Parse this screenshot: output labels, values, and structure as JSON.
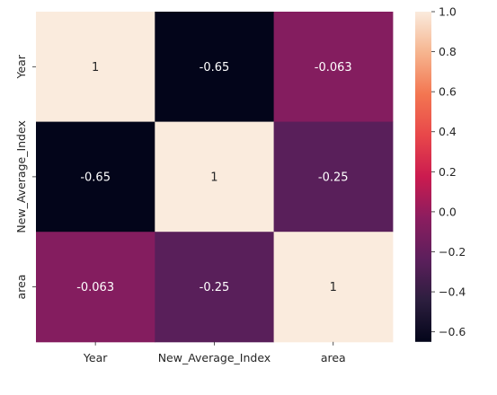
{
  "chart_data": {
    "type": "heatmap",
    "title": "",
    "xlabel": "",
    "ylabel": "",
    "x_categories": [
      "Year",
      "New_Average_Index",
      "area"
    ],
    "y_categories": [
      "Year",
      "New_Average_Index",
      "area"
    ],
    "values": [
      [
        1,
        -0.65,
        -0.063
      ],
      [
        -0.65,
        1,
        -0.25
      ],
      [
        -0.063,
        -0.25,
        1
      ]
    ],
    "cell_labels": [
      [
        "1",
        "-0.65",
        "-0.063"
      ],
      [
        "-0.65",
        "1",
        "-0.25"
      ],
      [
        "-0.063",
        "-0.25",
        "1"
      ]
    ],
    "colormap": "rocket",
    "colorbar": {
      "min": -0.65,
      "max": 1.0,
      "ticks": [
        1.0,
        0.8,
        0.6,
        0.4,
        0.2,
        0.0,
        -0.2,
        -0.4,
        -0.6
      ],
      "tick_labels": [
        "1.0",
        "0.8",
        "0.6",
        "0.4",
        "0.2",
        "0.0",
        "−0.2",
        "−0.4",
        "−0.6"
      ]
    }
  }
}
